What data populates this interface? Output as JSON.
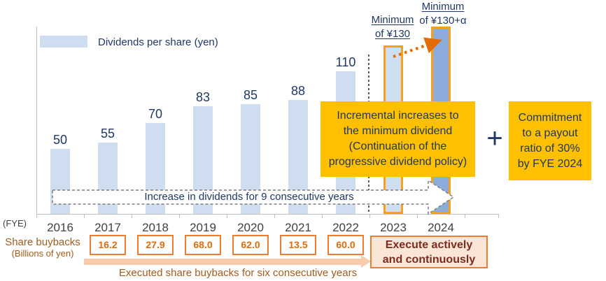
{
  "colors": {
    "bar_fill": "#CFDDF1",
    "bar_fill_alt": "#8CACDC",
    "bar_outline": "#F7A11A",
    "navy": "#1F3864",
    "gold": "#FFC000",
    "orange": "#ED7D31",
    "orange_text": "#E36C09",
    "brown": "#A15C1E",
    "maroon": "#7B2C20",
    "peach": "#F8CBAD",
    "peach_light": "#FBE5D6",
    "axis_gray": "#BFBFBF",
    "dash_gray": "#7F7F7F",
    "divider_gray": "#595959",
    "year_gray": "#404040"
  },
  "legend": {
    "label": "Dividends per share (yen)"
  },
  "fye_label": "(FYE)",
  "chart_data": {
    "type": "bar",
    "title": "",
    "xlabel": "(FYE)",
    "ylabel": "Dividends per share (yen)",
    "grid": false,
    "legend_position": "top-left",
    "categories": [
      "2016",
      "2017",
      "2018",
      "2019",
      "2020",
      "2021",
      "2022",
      "2023",
      "2024"
    ],
    "series": [
      {
        "name": "Dividends per share (yen)",
        "values": [
          50,
          55,
          70,
          83,
          85,
          88,
          110,
          130,
          145
        ],
        "display_values": [
          "50",
          "55",
          "70",
          "83",
          "85",
          "88",
          "110",
          "Minimum of ¥130",
          "Minimum of ¥130+α"
        ]
      }
    ],
    "notes": "2023 bar = minimum of ¥130 (forecast, orange outline); 2024 bar = minimum of ¥130+α (forecast, darker fill, orange outline; 145 is a drawn-height estimate)"
  },
  "annotations": {
    "min2023": {
      "line1": "Minimum",
      "line2": "of ¥130"
    },
    "min2024": {
      "line1": "Minimum",
      "line2": "of ¥130+α"
    },
    "increase_arrow": "Increase in dividends for 9 consecutive years",
    "incremental_box": {
      "lines": [
        "Incremental increases to",
        "the minimum dividend",
        "(Continuation of the",
        "progressive dividend policy)"
      ]
    },
    "plus": "+",
    "commitment_box": {
      "lines": [
        "Commitment",
        "to a payout",
        "ratio of 30%",
        "by FYE 2024"
      ]
    }
  },
  "buybacks": {
    "label_line1": "Share buybacks",
    "label_line2": "(Billions of yen)",
    "years": [
      "2017",
      "2018",
      "2019",
      "2020",
      "2021",
      "2022"
    ],
    "values": [
      "16.2",
      "27.9",
      "68.0",
      "62.0",
      "13.5",
      "60.0"
    ],
    "execute_box": {
      "lines": [
        "Execute actively",
        "and continuously"
      ]
    },
    "footer": "Executed share buybacks for six consecutive years"
  }
}
